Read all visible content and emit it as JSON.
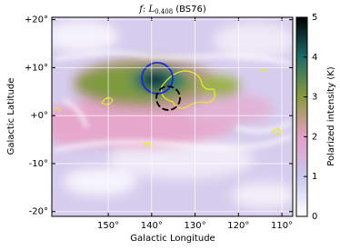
{
  "chart_data": {
    "type": "heatmap",
    "title": "f: L",
    "title_subscript": "0.408",
    "title_suffix": "(BS76)",
    "xlabel": "Galactic Longitude",
    "ylabel": "Galactic Latitude",
    "xlim": [
      163,
      107.5
    ],
    "ylim": [
      -21,
      20.5
    ],
    "xticks": [
      {
        "value": 150,
        "label": "150°"
      },
      {
        "value": 140,
        "label": "140°"
      },
      {
        "value": 130,
        "label": "130°"
      },
      {
        "value": 120,
        "label": "120°"
      },
      {
        "value": 110,
        "label": "110°"
      }
    ],
    "yticks": [
      {
        "value": 20,
        "label": "+20°"
      },
      {
        "value": 10,
        "label": "+10°"
      },
      {
        "value": 0,
        "label": "+0°"
      },
      {
        "value": -10,
        "label": "-10°"
      },
      {
        "value": -20,
        "label": "-20°"
      }
    ],
    "grid": true,
    "colorbar": {
      "label": "Polarized intensity (K)",
      "lim": [
        0,
        5
      ],
      "ticks": [
        0,
        1,
        2,
        3,
        4,
        5
      ],
      "colors": [
        "#ffffff",
        "#c9c8ee",
        "#e49fc6",
        "#8a9a3c",
        "#1f6a6a",
        "#000000"
      ]
    }
  }
}
